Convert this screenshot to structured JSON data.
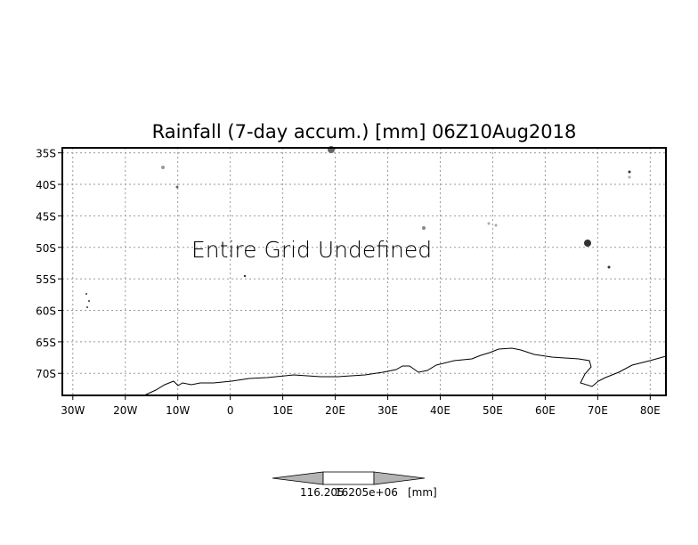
{
  "chart_data": {
    "type": "map",
    "title": "Rainfall (7-day accum.) [mm] 06Z10Aug2018",
    "annotation": "Entire Grid Undefined",
    "lon_range": [
      -32,
      83
    ],
    "lat_range": [
      -34.2,
      -73.5
    ],
    "x_ticks": [
      {
        "value": -30,
        "label": "30W"
      },
      {
        "value": -20,
        "label": "20W"
      },
      {
        "value": -10,
        "label": "10W"
      },
      {
        "value": 0,
        "label": "0"
      },
      {
        "value": 10,
        "label": "10E"
      },
      {
        "value": 20,
        "label": "20E"
      },
      {
        "value": 30,
        "label": "30E"
      },
      {
        "value": 40,
        "label": "40E"
      },
      {
        "value": 50,
        "label": "50E"
      },
      {
        "value": 60,
        "label": "60E"
      },
      {
        "value": 70,
        "label": "70E"
      },
      {
        "value": 80,
        "label": "80E"
      }
    ],
    "y_ticks": [
      {
        "value": -35,
        "label": "35S"
      },
      {
        "value": -40,
        "label": "40S"
      },
      {
        "value": -45,
        "label": "45S"
      },
      {
        "value": -50,
        "label": "50S"
      },
      {
        "value": -55,
        "label": "55S"
      },
      {
        "value": -60,
        "label": "60S"
      },
      {
        "value": -65,
        "label": "65S"
      },
      {
        "value": -70,
        "label": "70S"
      }
    ],
    "grid": true,
    "colorbar": {
      "labels": [
        "116.205",
        "16205e+06",
        "[mm]"
      ],
      "colors": [
        "#b4b4b4",
        "#ffffff",
        "#b4b4b4"
      ]
    }
  }
}
